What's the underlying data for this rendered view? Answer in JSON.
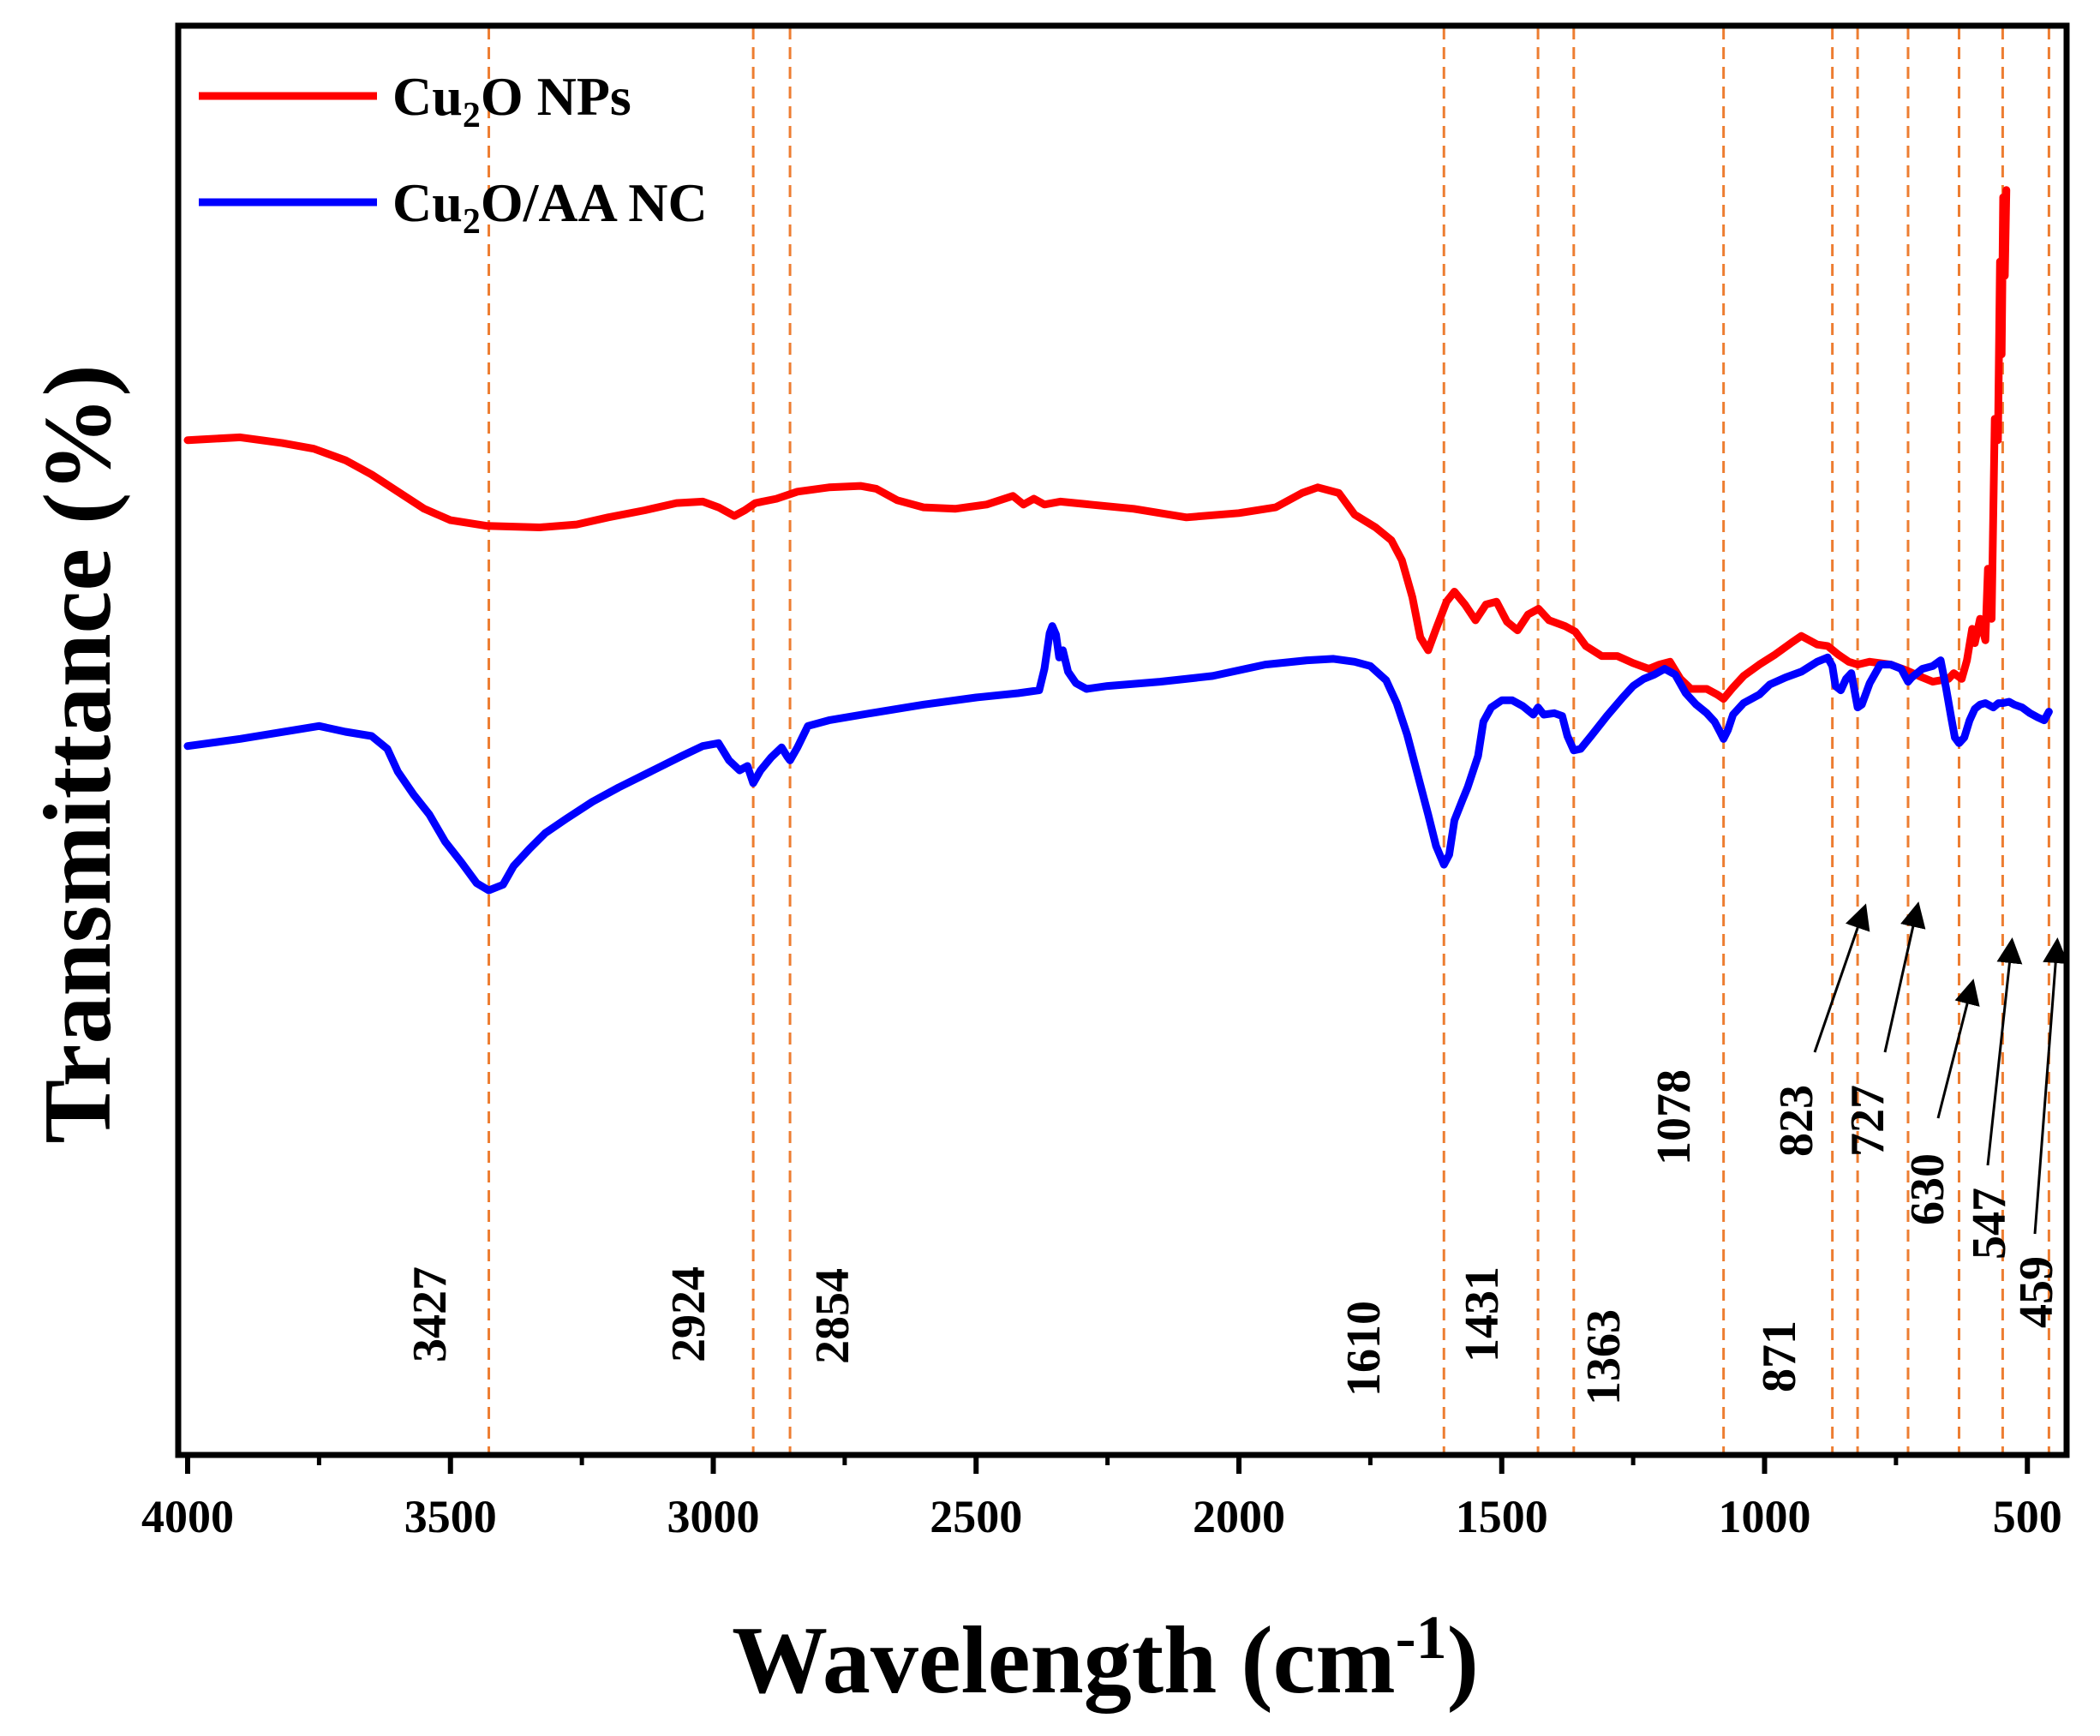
{
  "chart_data": {
    "type": "line",
    "xlabel": "Wavelength (cm",
    "xlabel_superscript": "-1",
    "xlabel_close": ")",
    "ylabel": "Transmittance (%)",
    "xlim": [
      4000,
      450
    ],
    "x_reversed": true,
    "y_ticks_visible": false,
    "x_ticks": [
      4000,
      3500,
      3000,
      2500,
      2000,
      1500,
      1000,
      500
    ],
    "x_tick_labels": [
      "4000",
      "3500",
      "3000",
      "2500",
      "2000",
      "1500",
      "1000",
      "500"
    ],
    "legend_position": "top-left",
    "series": [
      {
        "name": "NPs",
        "legend": {
          "prefix": "Cu",
          "subscript": "2",
          "suffix": "O NPs"
        },
        "color": "#ff0000",
        "points": [
          [
            4000,
            71
          ],
          [
            3900,
            71.2
          ],
          [
            3820,
            70.8
          ],
          [
            3760,
            70.4
          ],
          [
            3700,
            69.6
          ],
          [
            3650,
            68.6
          ],
          [
            3600,
            67.4
          ],
          [
            3550,
            66.2
          ],
          [
            3500,
            65.4
          ],
          [
            3430,
            65.0
          ],
          [
            3330,
            64.9
          ],
          [
            3260,
            65.1
          ],
          [
            3200,
            65.6
          ],
          [
            3130,
            66.1
          ],
          [
            3070,
            66.6
          ],
          [
            3020,
            66.7
          ],
          [
            2990,
            66.3
          ],
          [
            2960,
            65.7
          ],
          [
            2940,
            66.1
          ],
          [
            2920,
            66.6
          ],
          [
            2880,
            66.9
          ],
          [
            2840,
            67.4
          ],
          [
            2780,
            67.7
          ],
          [
            2720,
            67.8
          ],
          [
            2690,
            67.6
          ],
          [
            2650,
            66.8
          ],
          [
            2600,
            66.3
          ],
          [
            2540,
            66.2
          ],
          [
            2480,
            66.5
          ],
          [
            2430,
            67.1
          ],
          [
            2410,
            66.5
          ],
          [
            2390,
            66.9
          ],
          [
            2370,
            66.5
          ],
          [
            2340,
            66.7
          ],
          [
            2200,
            66.2
          ],
          [
            2100,
            65.6
          ],
          [
            2000,
            65.9
          ],
          [
            1930,
            66.3
          ],
          [
            1880,
            67.3
          ],
          [
            1850,
            67.7
          ],
          [
            1810,
            67.3
          ],
          [
            1780,
            65.8
          ],
          [
            1740,
            64.9
          ],
          [
            1710,
            64.0
          ],
          [
            1690,
            62.6
          ],
          [
            1670,
            60.0
          ],
          [
            1655,
            57.2
          ],
          [
            1640,
            56.3
          ],
          [
            1625,
            57.8
          ],
          [
            1605,
            59.7
          ],
          [
            1590,
            60.4
          ],
          [
            1570,
            59.5
          ],
          [
            1550,
            58.4
          ],
          [
            1530,
            59.5
          ],
          [
            1510,
            59.7
          ],
          [
            1490,
            58.3
          ],
          [
            1470,
            57.7
          ],
          [
            1450,
            58.8
          ],
          [
            1430,
            59.2
          ],
          [
            1410,
            58.4
          ],
          [
            1380,
            58.0
          ],
          [
            1360,
            57.6
          ],
          [
            1340,
            56.6
          ],
          [
            1310,
            55.9
          ],
          [
            1280,
            55.9
          ],
          [
            1250,
            55.4
          ],
          [
            1220,
            55.0
          ],
          [
            1200,
            55.3
          ],
          [
            1180,
            55.5
          ],
          [
            1160,
            54.3
          ],
          [
            1140,
            53.6
          ],
          [
            1110,
            53.6
          ],
          [
            1090,
            53.2
          ],
          [
            1078,
            52.9
          ],
          [
            1060,
            53.7
          ],
          [
            1040,
            54.5
          ],
          [
            1010,
            55.3
          ],
          [
            980,
            56.0
          ],
          [
            950,
            56.8
          ],
          [
            930,
            57.3
          ],
          [
            900,
            56.7
          ],
          [
            880,
            56.6
          ],
          [
            860,
            56.0
          ],
          [
            840,
            55.5
          ],
          [
            823,
            55.3
          ],
          [
            800,
            55.5
          ],
          [
            760,
            55.3
          ],
          [
            730,
            54.9
          ],
          [
            700,
            54.4
          ],
          [
            680,
            54.1
          ],
          [
            650,
            54.3
          ],
          [
            640,
            54.7
          ],
          [
            625,
            54.3
          ],
          [
            615,
            55.6
          ],
          [
            605,
            57.8
          ],
          [
            600,
            56.8
          ],
          [
            590,
            58.5
          ],
          [
            580,
            57.0
          ],
          [
            575,
            62.0
          ],
          [
            568,
            58.5
          ],
          [
            562,
            72.5
          ],
          [
            556,
            71.0
          ],
          [
            552,
            83.5
          ],
          [
            549,
            77.0
          ],
          [
            546,
            88.0
          ],
          [
            543,
            82.5
          ],
          [
            540,
            88.5
          ]
        ]
      },
      {
        "name": "NC",
        "legend": {
          "prefix": "Cu",
          "subscript": "2",
          "suffix": "O/AA NC"
        },
        "color": "#0000ff",
        "points": [
          [
            4000,
            49.6
          ],
          [
            3900,
            50.1
          ],
          [
            3850,
            50.4
          ],
          [
            3800,
            50.7
          ],
          [
            3750,
            51.0
          ],
          [
            3700,
            50.6
          ],
          [
            3650,
            50.3
          ],
          [
            3620,
            49.4
          ],
          [
            3600,
            47.8
          ],
          [
            3570,
            46.2
          ],
          [
            3540,
            44.8
          ],
          [
            3510,
            42.9
          ],
          [
            3480,
            41.5
          ],
          [
            3450,
            40.0
          ],
          [
            3427,
            39.5
          ],
          [
            3400,
            39.9
          ],
          [
            3380,
            41.2
          ],
          [
            3350,
            42.4
          ],
          [
            3320,
            43.5
          ],
          [
            3280,
            44.5
          ],
          [
            3230,
            45.7
          ],
          [
            3180,
            46.7
          ],
          [
            3120,
            47.8
          ],
          [
            3060,
            48.9
          ],
          [
            3020,
            49.6
          ],
          [
            2990,
            49.8
          ],
          [
            2970,
            48.6
          ],
          [
            2950,
            47.9
          ],
          [
            2935,
            48.2
          ],
          [
            2924,
            47.0
          ],
          [
            2910,
            47.9
          ],
          [
            2890,
            48.8
          ],
          [
            2870,
            49.5
          ],
          [
            2860,
            48.9
          ],
          [
            2854,
            48.6
          ],
          [
            2840,
            49.5
          ],
          [
            2820,
            51.0
          ],
          [
            2780,
            51.4
          ],
          [
            2700,
            51.9
          ],
          [
            2600,
            52.5
          ],
          [
            2500,
            53.0
          ],
          [
            2420,
            53.3
          ],
          [
            2380,
            53.5
          ],
          [
            2370,
            55.0
          ],
          [
            2360,
            57.5
          ],
          [
            2355,
            58.0
          ],
          [
            2348,
            57.4
          ],
          [
            2342,
            55.8
          ],
          [
            2335,
            56.3
          ],
          [
            2325,
            54.8
          ],
          [
            2310,
            54.0
          ],
          [
            2290,
            53.6
          ],
          [
            2250,
            53.8
          ],
          [
            2150,
            54.1
          ],
          [
            2050,
            54.5
          ],
          [
            1950,
            55.3
          ],
          [
            1870,
            55.6
          ],
          [
            1820,
            55.7
          ],
          [
            1780,
            55.5
          ],
          [
            1750,
            55.2
          ],
          [
            1720,
            54.2
          ],
          [
            1700,
            52.6
          ],
          [
            1680,
            50.4
          ],
          [
            1660,
            47.6
          ],
          [
            1640,
            44.8
          ],
          [
            1625,
            42.6
          ],
          [
            1610,
            41.3
          ],
          [
            1600,
            42.0
          ],
          [
            1590,
            44.4
          ],
          [
            1575,
            45.8
          ],
          [
            1565,
            46.7
          ],
          [
            1555,
            47.8
          ],
          [
            1545,
            48.9
          ],
          [
            1535,
            51.3
          ],
          [
            1520,
            52.3
          ],
          [
            1500,
            52.8
          ],
          [
            1480,
            52.8
          ],
          [
            1460,
            52.4
          ],
          [
            1440,
            51.8
          ],
          [
            1431,
            52.3
          ],
          [
            1420,
            51.8
          ],
          [
            1400,
            51.9
          ],
          [
            1385,
            51.7
          ],
          [
            1375,
            50.3
          ],
          [
            1363,
            49.3
          ],
          [
            1350,
            49.4
          ],
          [
            1330,
            50.3
          ],
          [
            1300,
            51.7
          ],
          [
            1270,
            53.0
          ],
          [
            1250,
            53.8
          ],
          [
            1230,
            54.3
          ],
          [
            1210,
            54.6
          ],
          [
            1190,
            55.0
          ],
          [
            1170,
            54.6
          ],
          [
            1150,
            53.3
          ],
          [
            1130,
            52.5
          ],
          [
            1110,
            51.9
          ],
          [
            1095,
            51.3
          ],
          [
            1085,
            50.6
          ],
          [
            1078,
            50.1
          ],
          [
            1070,
            50.7
          ],
          [
            1060,
            51.8
          ],
          [
            1040,
            52.6
          ],
          [
            1010,
            53.2
          ],
          [
            990,
            53.9
          ],
          [
            960,
            54.4
          ],
          [
            930,
            54.8
          ],
          [
            900,
            55.5
          ],
          [
            880,
            55.8
          ],
          [
            871,
            55.2
          ],
          [
            865,
            53.8
          ],
          [
            855,
            53.5
          ],
          [
            845,
            54.3
          ],
          [
            835,
            54.7
          ],
          [
            823,
            52.3
          ],
          [
            815,
            52.5
          ],
          [
            800,
            54.0
          ],
          [
            780,
            55.3
          ],
          [
            760,
            55.3
          ],
          [
            740,
            55.0
          ],
          [
            727,
            54.1
          ],
          [
            720,
            54.4
          ],
          [
            700,
            55.0
          ],
          [
            680,
            55.2
          ],
          [
            665,
            55.6
          ],
          [
            655,
            53.7
          ],
          [
            645,
            51.6
          ],
          [
            638,
            50.2
          ],
          [
            630,
            49.8
          ],
          [
            620,
            50.2
          ],
          [
            610,
            51.4
          ],
          [
            600,
            52.2
          ],
          [
            590,
            52.5
          ],
          [
            580,
            52.6
          ],
          [
            565,
            52.3
          ],
          [
            555,
            52.6
          ],
          [
            547,
            52.6
          ],
          [
            535,
            52.7
          ],
          [
            525,
            52.5
          ],
          [
            510,
            52.3
          ],
          [
            495,
            51.9
          ],
          [
            480,
            51.6
          ],
          [
            468,
            51.4
          ],
          [
            459,
            52.0
          ]
        ]
      }
    ],
    "reference_lines": {
      "color": "#ed7d31",
      "x": [
        3427,
        2924,
        2854,
        1610,
        1431,
        1363,
        1078,
        871,
        823,
        727,
        630,
        547,
        459
      ]
    },
    "annotations": [
      {
        "text": "3427",
        "x": 3427
      },
      {
        "text": "2924",
        "x": 2924
      },
      {
        "text": "2854",
        "x": 2854
      },
      {
        "text": "1610",
        "x": 1610
      },
      {
        "text": "1431",
        "x": 1431
      },
      {
        "text": "1363",
        "x": 1363
      },
      {
        "text": "1078",
        "x": 1078
      },
      {
        "text": "871",
        "x": 871
      },
      {
        "text": "823",
        "x": 823
      },
      {
        "text": "727",
        "x": 727
      },
      {
        "text": "630",
        "x": 630
      },
      {
        "text": "547",
        "x": 547
      },
      {
        "text": "459",
        "x": 459
      }
    ]
  }
}
